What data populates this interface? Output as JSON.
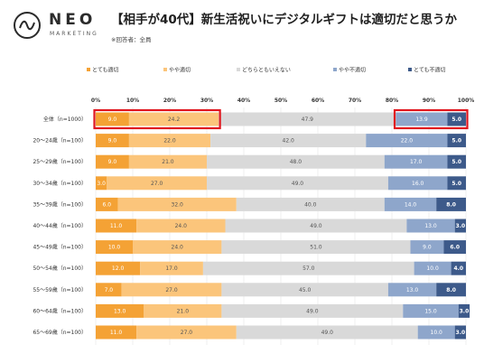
{
  "logo": {
    "name": "NEO",
    "sub": "MARKETING"
  },
  "title": "【相手が40代】新生活祝いにデジタルギフトは適切だと思うか",
  "note": "※回答者：全員",
  "chart_data": {
    "type": "bar",
    "orientation": "horizontal",
    "stacked": "percent",
    "legend_position": "top",
    "xlim": [
      0,
      100
    ],
    "x_ticks": [
      "0%",
      "10%",
      "20%",
      "30%",
      "40%",
      "50%",
      "60%",
      "70%",
      "80%",
      "90%",
      "100%"
    ],
    "categories": [
      "全体（n=1000）",
      "20～24歳（n=100）",
      "25～29歳（n=100）",
      "30～34歳（n=100）",
      "35～39歳（n=100）",
      "40～44歳（n=100）",
      "45～49歳（n=100）",
      "50～54歳（n=100）",
      "55～59歳（n=100）",
      "60～64歳（n=100）",
      "65～69歳（n=100）"
    ],
    "series": [
      {
        "name": "とても適切",
        "color": "#f4a235",
        "values": [
          9.0,
          9.0,
          9.0,
          3.0,
          6.0,
          11.0,
          10.0,
          12.0,
          7.0,
          13.0,
          11.0
        ]
      },
      {
        "name": "やや適切",
        "color": "#fbc57b",
        "values": [
          24.2,
          22.0,
          21.0,
          27.0,
          32.0,
          24.0,
          24.0,
          17.0,
          27.0,
          21.0,
          27.0
        ]
      },
      {
        "name": "どちらともいえない",
        "color": "#d9d9d9",
        "values": [
          47.9,
          42.0,
          48.0,
          49.0,
          40.0,
          49.0,
          51.0,
          57.0,
          45.0,
          49.0,
          49.0
        ]
      },
      {
        "name": "やや不適切",
        "color": "#8ea6cb",
        "values": [
          13.9,
          22.0,
          17.0,
          16.0,
          14.0,
          13.0,
          9.0,
          10.0,
          13.0,
          15.0,
          10.0
        ]
      },
      {
        "name": "とても不適切",
        "color": "#3d5a8a",
        "values": [
          5.0,
          5.0,
          5.0,
          5.0,
          8.0,
          3.0,
          6.0,
          4.0,
          8.0,
          3.0,
          3.0
        ]
      }
    ],
    "highlights": [
      {
        "row": 0,
        "from": 0,
        "to": 33.2,
        "color": "#e0161e"
      },
      {
        "row": 0,
        "from": 81.1,
        "to": 100,
        "color": "#e0161e"
      }
    ]
  }
}
